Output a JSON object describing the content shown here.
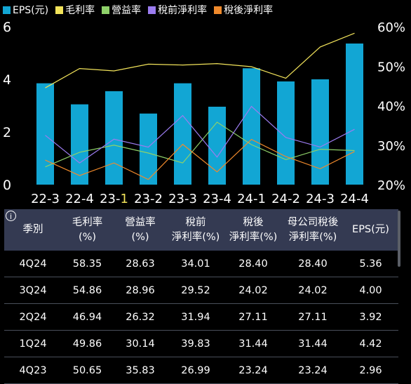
{
  "legend": [
    {
      "label": "EPS(元)",
      "color": "#12a6d4"
    },
    {
      "label": "毛利率",
      "color": "#f2e35a"
    },
    {
      "label": "營益率",
      "color": "#8fd16a"
    },
    {
      "label": "稅前淨利率",
      "color": "#9b7cf0"
    },
    {
      "label": "稅後淨利率",
      "color": "#f08a2c"
    }
  ],
  "chart_data": {
    "type": "bar",
    "categories": [
      "22-3",
      "22-4",
      "23-1",
      "23-2",
      "23-3",
      "23-4",
      "24-1",
      "24-2",
      "24-3",
      "24-4"
    ],
    "highlight_tick_char": {
      "index": 2,
      "char": "1",
      "color": "#f2e35a"
    },
    "ylim_left": [
      0,
      6
    ],
    "yticks_left": [
      "0",
      "2",
      "4",
      "6"
    ],
    "ylim_right": [
      20,
      60
    ],
    "yticks_right": [
      "20%",
      "30%",
      "40%",
      "50%",
      "60%"
    ],
    "grid": false,
    "bars": {
      "name": "EPS(元)",
      "color": "#12a6d4",
      "values": [
        3.85,
        3.05,
        3.55,
        2.7,
        3.85,
        2.96,
        4.42,
        3.92,
        4.0,
        5.36
      ]
    },
    "lines": [
      {
        "name": "毛利率",
        "color": "#f2e35a",
        "values": [
          44.5,
          49.4,
          48.8,
          50.5,
          50.3,
          50.65,
          49.86,
          46.94,
          54.86,
          58.35
        ]
      },
      {
        "name": "營益率",
        "color": "#8fd16a",
        "values": [
          24.5,
          28.2,
          30.0,
          28.0,
          25.5,
          35.83,
          30.14,
          26.32,
          28.96,
          28.63
        ]
      },
      {
        "name": "稅前淨利率",
        "color": "#9b7cf0",
        "values": [
          32.5,
          25.5,
          31.5,
          29.5,
          37.5,
          26.99,
          39.83,
          31.94,
          29.52,
          34.01
        ]
      },
      {
        "name": "稅後淨利率",
        "color": "#f08a2c",
        "values": [
          26.2,
          22.3,
          25.5,
          21.3,
          30.2,
          23.24,
          31.44,
          27.11,
          24.02,
          28.4
        ]
      }
    ]
  },
  "table": {
    "info_icon": "i",
    "headers": [
      {
        "l1": "季別",
        "l2": ""
      },
      {
        "l1": "毛利率",
        "l2": "(%)"
      },
      {
        "l1": "營益率",
        "l2": "(%)"
      },
      {
        "l1": "稅前",
        "l2": "淨利率(%)"
      },
      {
        "l1": "稅後",
        "l2": "淨利率(%)"
      },
      {
        "l1": "母公司稅後",
        "l2": "淨利率(%)"
      },
      {
        "l1": "EPS(元)",
        "l2": ""
      }
    ],
    "rows": [
      [
        "4Q24",
        "58.35",
        "28.63",
        "34.01",
        "28.40",
        "28.40",
        "5.36"
      ],
      [
        "3Q24",
        "54.86",
        "28.96",
        "29.52",
        "24.02",
        "24.02",
        "4.00"
      ],
      [
        "2Q24",
        "46.94",
        "26.32",
        "31.94",
        "27.11",
        "27.11",
        "3.92"
      ],
      [
        "1Q24",
        "49.86",
        "30.14",
        "39.83",
        "31.44",
        "31.44",
        "4.42"
      ],
      [
        "4Q23",
        "50.65",
        "35.83",
        "26.99",
        "23.24",
        "23.24",
        "2.96"
      ]
    ]
  }
}
